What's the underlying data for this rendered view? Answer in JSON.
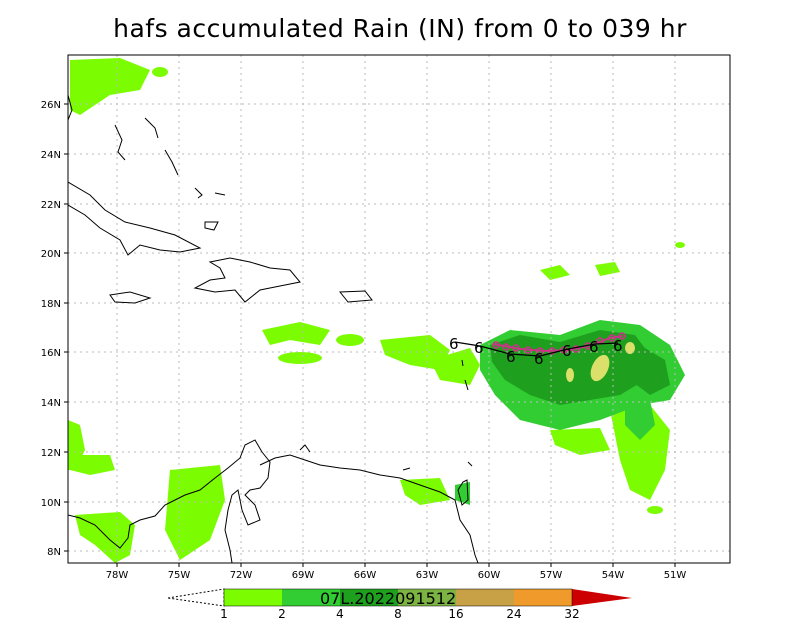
{
  "title": "hafs accumulated Rain (IN) from 0 to 039 hr",
  "storm_stamp": "07L.2022091512",
  "lat_labels": [
    "8N",
    "10N",
    "12N",
    "14N",
    "16N",
    "18N",
    "20N",
    "22N",
    "24N",
    "26N"
  ],
  "lon_labels": [
    "78W",
    "75W",
    "72W",
    "69W",
    "66W",
    "63W",
    "60W",
    "57W",
    "54W",
    "51W"
  ],
  "colorbar": {
    "labels": [
      "1",
      "2",
      "4",
      "8",
      "16",
      "24",
      "32"
    ],
    "colors": [
      "#ffffff",
      "#7cfc00",
      "#32cd32",
      "#1e9f1e",
      "#c8a045",
      "#ef9a2a",
      "#cc0000"
    ]
  },
  "colors": {
    "rain_light": "#7cfc00",
    "rain_mid": "#32cd32",
    "rain_dark": "#1e9f1e",
    "rain_heavy": "#dbe06a",
    "track_forecast": "#000000",
    "track_observed": "#cc3388"
  },
  "track_symbol": "6"
}
